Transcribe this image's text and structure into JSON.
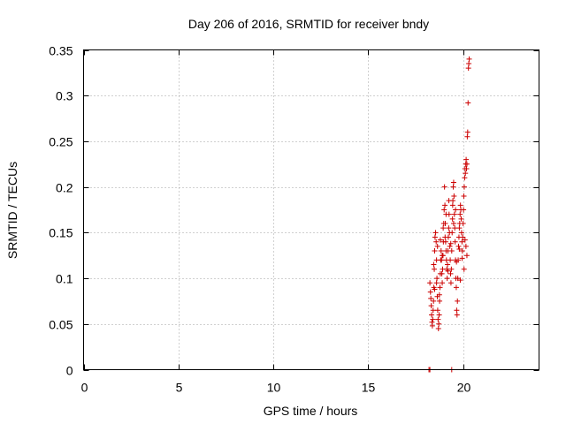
{
  "chart_data": {
    "type": "scatter",
    "title": "Day 206 of 2016, SRMTID for receiver bndy",
    "xlabel": "GPS time / hours",
    "ylabel": "SRMTID / TECUs",
    "xlim": [
      0,
      24
    ],
    "ylim": [
      0,
      0.35
    ],
    "xticks": [
      0,
      5,
      10,
      15,
      20
    ],
    "xtick_labels": [
      "0",
      "5",
      "10",
      "15",
      "20"
    ],
    "yticks": [
      0,
      0.05,
      0.1,
      0.15,
      0.2,
      0.25,
      0.3,
      0.35
    ],
    "ytick_labels": [
      "0",
      "0.05",
      "0.1",
      "0.15",
      "0.2",
      "0.25",
      "0.3",
      "0.35"
    ],
    "grid": true,
    "marker": "+",
    "color": "#cc0000",
    "series": [
      {
        "name": "SRMTID",
        "points": [
          [
            18.2,
            0.0
          ],
          [
            18.25,
            0.0
          ],
          [
            19.4,
            0.0
          ],
          [
            18.25,
            0.095
          ],
          [
            18.28,
            0.085
          ],
          [
            18.3,
            0.078
          ],
          [
            18.32,
            0.07
          ],
          [
            18.34,
            0.06
          ],
          [
            18.36,
            0.052
          ],
          [
            18.38,
            0.048
          ],
          [
            18.4,
            0.055
          ],
          [
            18.42,
            0.065
          ],
          [
            18.44,
            0.075
          ],
          [
            18.46,
            0.09
          ],
          [
            18.48,
            0.11
          ],
          [
            18.5,
            0.13
          ],
          [
            18.52,
            0.145
          ],
          [
            18.55,
            0.15
          ],
          [
            18.58,
            0.14
          ],
          [
            18.6,
            0.12
          ],
          [
            18.62,
            0.1
          ],
          [
            18.64,
            0.08
          ],
          [
            18.66,
            0.065
          ],
          [
            18.68,
            0.055
          ],
          [
            18.7,
            0.045
          ],
          [
            18.72,
            0.05
          ],
          [
            18.74,
            0.06
          ],
          [
            18.76,
            0.075
          ],
          [
            18.78,
            0.09
          ],
          [
            18.8,
            0.105
          ],
          [
            18.82,
            0.12
          ],
          [
            18.84,
            0.13
          ],
          [
            18.86,
            0.12
          ],
          [
            18.88,
            0.105
          ],
          [
            18.9,
            0.095
          ],
          [
            18.92,
            0.11
          ],
          [
            18.94,
            0.125
          ],
          [
            18.96,
            0.14
          ],
          [
            18.98,
            0.16
          ],
          [
            19.0,
            0.175
          ],
          [
            19.02,
            0.2
          ],
          [
            19.04,
            0.18
          ],
          [
            19.06,
            0.16
          ],
          [
            19.08,
            0.14
          ],
          [
            19.1,
            0.13
          ],
          [
            19.12,
            0.12
          ],
          [
            19.14,
            0.11
          ],
          [
            19.16,
            0.1
          ],
          [
            19.18,
            0.115
          ],
          [
            19.2,
            0.13
          ],
          [
            19.22,
            0.145
          ],
          [
            19.24,
            0.155
          ],
          [
            19.26,
            0.17
          ],
          [
            19.28,
            0.15
          ],
          [
            19.3,
            0.135
          ],
          [
            19.32,
            0.12
          ],
          [
            19.34,
            0.105
          ],
          [
            19.36,
            0.095
          ],
          [
            19.38,
            0.11
          ],
          [
            19.4,
            0.13
          ],
          [
            19.42,
            0.15
          ],
          [
            19.44,
            0.165
          ],
          [
            19.46,
            0.185
          ],
          [
            19.48,
            0.2
          ],
          [
            19.5,
            0.205
          ],
          [
            19.52,
            0.19
          ],
          [
            19.54,
            0.17
          ],
          [
            19.56,
            0.155
          ],
          [
            19.58,
            0.14
          ],
          [
            19.6,
            0.12
          ],
          [
            19.62,
            0.1
          ],
          [
            19.64,
            0.09
          ],
          [
            19.66,
            0.065
          ],
          [
            19.68,
            0.06
          ],
          [
            19.7,
            0.075
          ],
          [
            19.72,
            0.1
          ],
          [
            19.74,
            0.12
          ],
          [
            19.76,
            0.135
          ],
          [
            19.78,
            0.145
          ],
          [
            19.8,
            0.155
          ],
          [
            19.82,
            0.16
          ],
          [
            19.84,
            0.17
          ],
          [
            19.86,
            0.18
          ],
          [
            19.88,
            0.175
          ],
          [
            19.9,
            0.165
          ],
          [
            19.92,
            0.15
          ],
          [
            19.94,
            0.14
          ],
          [
            19.96,
            0.13
          ],
          [
            19.98,
            0.145
          ],
          [
            20.0,
            0.16
          ],
          [
            20.02,
            0.175
          ],
          [
            20.04,
            0.19
          ],
          [
            20.06,
            0.2
          ],
          [
            20.08,
            0.21
          ],
          [
            20.1,
            0.22
          ],
          [
            20.12,
            0.215
          ],
          [
            20.14,
            0.225
          ],
          [
            20.16,
            0.23
          ],
          [
            20.18,
            0.22
          ],
          [
            20.2,
            0.225
          ],
          [
            20.22,
            0.255
          ],
          [
            20.24,
            0.26
          ],
          [
            20.26,
            0.292
          ],
          [
            20.28,
            0.33
          ],
          [
            20.3,
            0.335
          ],
          [
            20.32,
            0.34
          ],
          [
            18.45,
            0.115
          ],
          [
            18.6,
            0.095
          ],
          [
            18.75,
            0.082
          ],
          [
            18.9,
            0.125
          ],
          [
            19.05,
            0.145
          ],
          [
            19.2,
            0.108
          ],
          [
            19.35,
            0.138
          ],
          [
            19.5,
            0.16
          ],
          [
            19.65,
            0.118
          ],
          [
            19.8,
            0.132
          ],
          [
            19.95,
            0.122
          ],
          [
            20.1,
            0.142
          ],
          [
            20.15,
            0.135
          ],
          [
            20.2,
            0.125
          ],
          [
            20.05,
            0.11
          ],
          [
            19.85,
            0.098
          ],
          [
            19.6,
            0.175
          ],
          [
            19.45,
            0.18
          ],
          [
            19.25,
            0.185
          ],
          [
            19.1,
            0.17
          ],
          [
            18.95,
            0.155
          ],
          [
            18.8,
            0.142
          ],
          [
            18.65,
            0.135
          ],
          [
            18.5,
            0.088
          ]
        ]
      }
    ]
  }
}
